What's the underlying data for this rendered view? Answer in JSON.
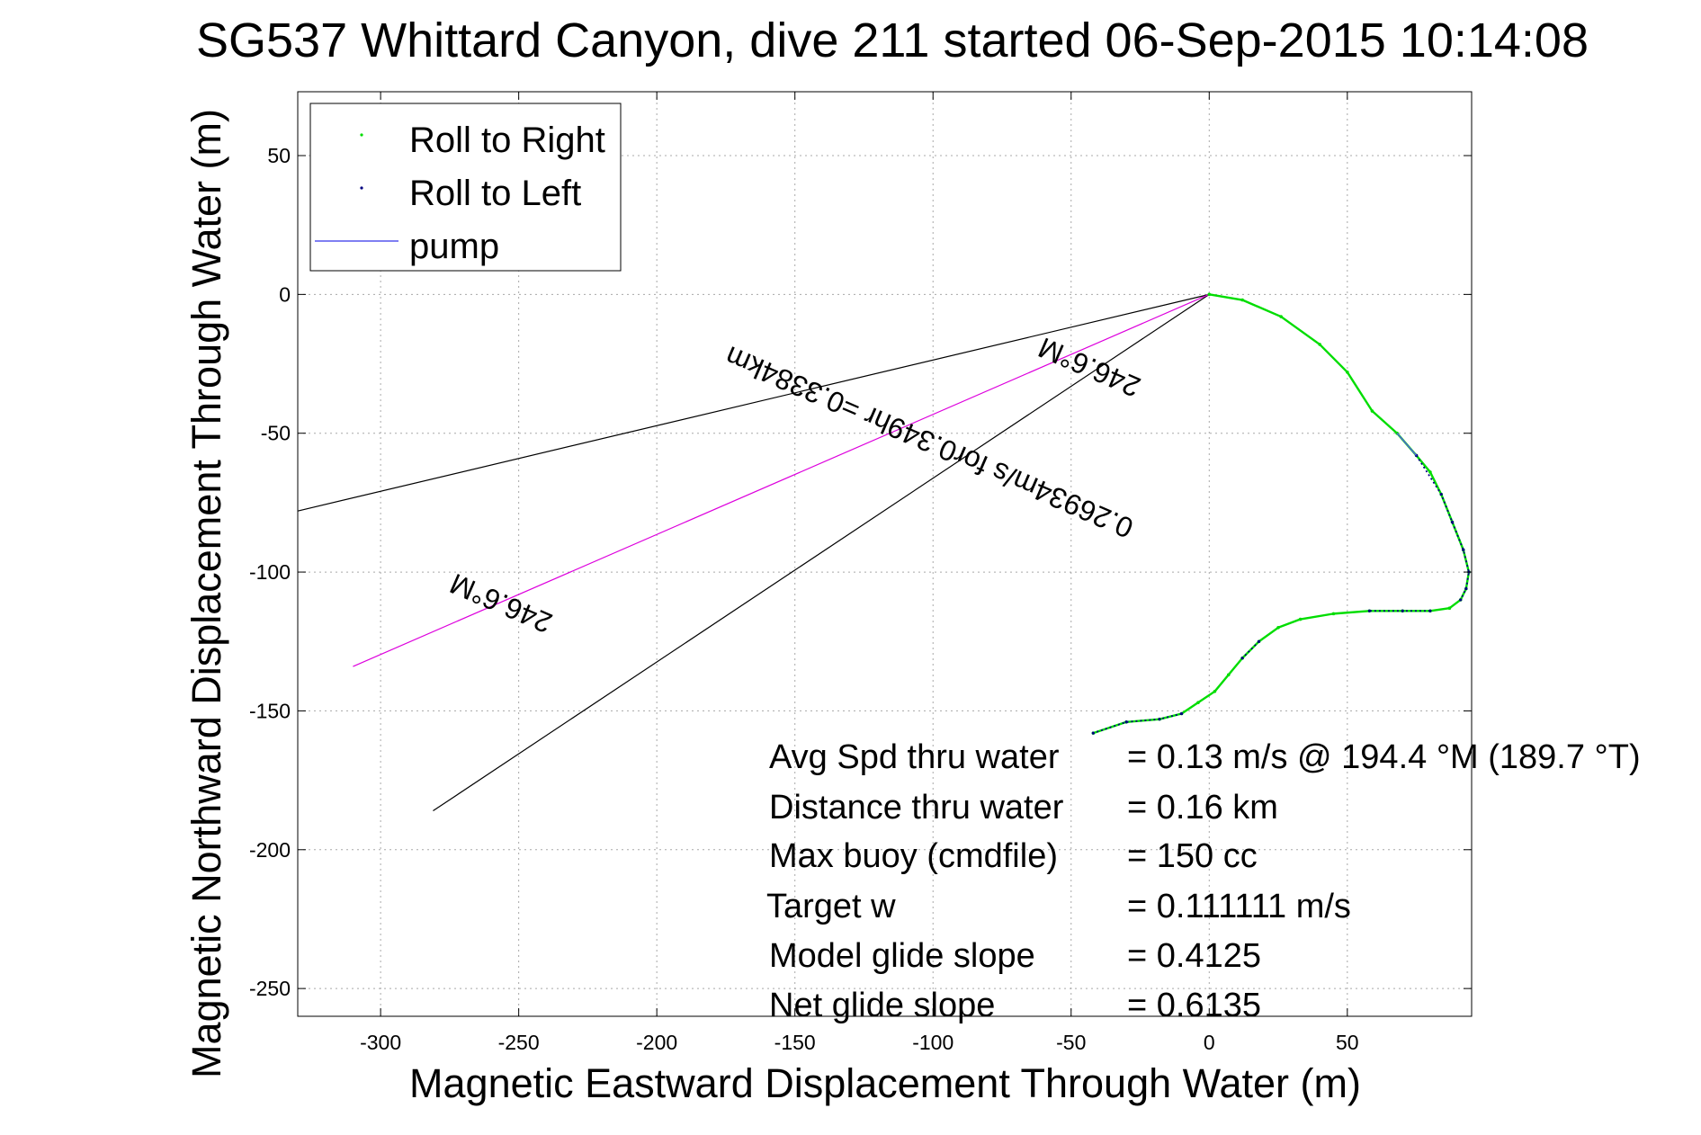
{
  "chart_data": {
    "type": "scatter",
    "title": "SG537 Whittard Canyon, dive 211 started 06-Sep-2015 10:14:08",
    "xlabel": "Magnetic Eastward Displacement Through Water (m)",
    "ylabel": "Magnetic Northward Displacement Through Water (m)",
    "xlim": [
      -330,
      95
    ],
    "ylim": [
      -260,
      73
    ],
    "xticks": [
      -300,
      -250,
      -200,
      -150,
      -100,
      -50,
      0,
      50
    ],
    "yticks": [
      50,
      0,
      -50,
      -100,
      -150,
      -200,
      -250
    ],
    "grid": true,
    "legend_position": "top-left",
    "legend": [
      {
        "label": "Roll to Right",
        "color": "#00dd00",
        "marker": "point"
      },
      {
        "label": "Roll to Left",
        "color": "#000080",
        "marker": "point"
      },
      {
        "label": "pump",
        "color": "#5555ee",
        "marker": "line"
      }
    ],
    "track": {
      "name": "Roll to Right",
      "color": "#00dd00",
      "x": [
        0,
        12,
        26,
        40,
        50,
        59,
        68,
        75,
        80,
        84,
        88,
        92,
        94,
        93,
        91,
        87,
        80,
        70,
        58,
        45,
        33,
        25,
        18,
        12,
        7,
        2,
        -4,
        -10,
        -18,
        -30,
        -42
      ],
      "y": [
        0,
        -2,
        -8,
        -18,
        -28,
        -42,
        -50,
        -58,
        -64,
        -72,
        -82,
        -92,
        -100,
        -106,
        -110,
        -113,
        -114,
        -114,
        -114,
        -115,
        -117,
        -120,
        -125,
        -131,
        -137,
        -143,
        -147,
        -151,
        -153,
        -154,
        -158
      ]
    },
    "roll_left_segments": [
      {
        "x": [
          75,
          84,
          88,
          92,
          94,
          93,
          91
        ],
        "y": [
          -58,
          -72,
          -82,
          -92,
          -100,
          -106,
          -110
        ]
      },
      {
        "x": [
          80,
          70,
          58
        ],
        "y": [
          -114,
          -114,
          -114
        ]
      },
      {
        "x": [
          18,
          12
        ],
        "y": [
          -125,
          -131
        ]
      },
      {
        "x": [
          -10,
          -18,
          -30,
          -42
        ],
        "y": [
          -151,
          -153,
          -154,
          -158
        ]
      }
    ],
    "pump_segments": [
      {
        "x": [
          68,
          75
        ],
        "y": [
          -50,
          -58
        ]
      }
    ],
    "heading_lines": [
      {
        "x": [
          0,
          -330
        ],
        "y": [
          0,
          -78
        ],
        "color": "#000000"
      },
      {
        "x": [
          0,
          -281
        ],
        "y": [
          0,
          -186
        ],
        "color": "#000000"
      },
      {
        "x": [
          0,
          -310
        ],
        "y": [
          0,
          -134
        ],
        "color": "#dd00dd"
      }
    ],
    "line_labels": [
      {
        "text": "246.6°M",
        "x": -255,
        "y": -108,
        "angle_deg": 203.4
      },
      {
        "text": "0.26934m/s for0.349hr =0.3384km",
        "x": -100,
        "y": -50,
        "angle_deg": 203.4
      },
      {
        "text": "246.6°M",
        "x": -42,
        "y": -23,
        "angle_deg": 203.4
      }
    ],
    "stats": [
      {
        "label": "Avg Spd thru water",
        "value": "=  0.13 m/s @ 194.4  °M (189.7 °T)"
      },
      {
        "label": "Distance thru water",
        "value": "=  0.16 km"
      },
      {
        "label": "Max buoy (cmdfile)",
        "value": "= 150 cc"
      },
      {
        "label": "Target w",
        "value": "= 0.111111 m/s"
      },
      {
        "label": "Model glide slope",
        "value": "= 0.4125"
      },
      {
        "label": "Net glide slope",
        "value": "= 0.6135"
      }
    ]
  }
}
